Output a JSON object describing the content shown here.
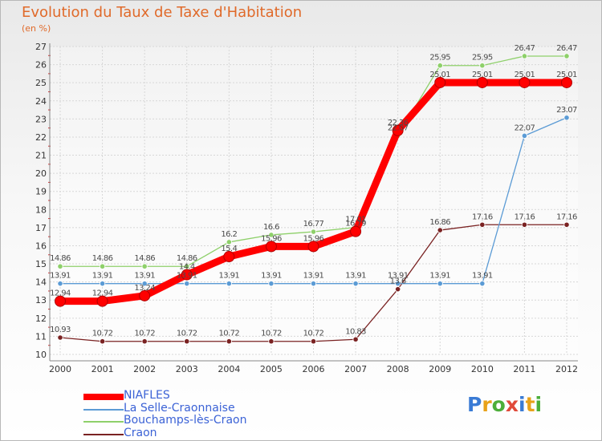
{
  "title": "Evolution du Taux de Taxe d'Habitation",
  "subtitle": "(en %)",
  "logo": {
    "text": "Proxiti",
    "colors": [
      "#3a7bd5",
      "#e8a21a",
      "#4cae3a",
      "#e04a3a",
      "#3a7bd5",
      "#e8a21a",
      "#4cae3a"
    ]
  },
  "chart_data": {
    "type": "line",
    "x": [
      2000,
      2001,
      2002,
      2003,
      2004,
      2005,
      2006,
      2007,
      2008,
      2009,
      2010,
      2011,
      2012
    ],
    "ylim": [
      10,
      27
    ],
    "yticks": [
      10,
      11,
      12,
      13,
      14,
      15,
      16,
      17,
      18,
      19,
      20,
      21,
      22,
      23,
      24,
      25,
      26,
      27
    ],
    "grid": true,
    "legend_position": "bottom-left",
    "series": [
      {
        "name": "NIAFLES",
        "color": "#ff0000",
        "values": [
          12.94,
          12.94,
          13.24,
          14.4,
          15.4,
          15.96,
          15.96,
          16.79,
          22.36,
          25.01,
          25.01,
          25.01,
          25.01
        ],
        "labels": [
          "12.94",
          "12.94",
          "13.24",
          "14.4",
          "15.4",
          "15.96",
          "15.96",
          "16.79",
          "22.36",
          "25.01",
          "25.01",
          "25.01",
          "25.01"
        ]
      },
      {
        "name": "La Selle-Craonnaise",
        "color": "#5b9bd5",
        "values": [
          13.91,
          13.91,
          13.91,
          13.91,
          13.91,
          13.91,
          13.91,
          13.91,
          13.91,
          13.91,
          13.91,
          22.07,
          23.07
        ],
        "labels": [
          "13.91",
          "13.91",
          "13.91",
          "13.91",
          "13.91",
          "13.91",
          "13.91",
          "13.91",
          "13.91",
          "13.91",
          "13.91",
          "22.07",
          "23.07"
        ]
      },
      {
        "name": "Bouchamps-lès-Craon",
        "color": "#8ed06a",
        "values": [
          14.86,
          14.86,
          14.86,
          14.86,
          16.2,
          16.6,
          16.77,
          17.01,
          22.07,
          25.95,
          25.95,
          26.47,
          26.47
        ],
        "labels": [
          "14.86",
          "14.86",
          "14.86",
          "14.86",
          "16.2",
          "16.6",
          "16.77",
          "17.01",
          "22.07",
          "25.95",
          "25.95",
          "26.47",
          "26.47"
        ]
      },
      {
        "name": "Craon",
        "color": "#7a2222",
        "values": [
          10.93,
          10.72,
          10.72,
          10.72,
          10.72,
          10.72,
          10.72,
          10.83,
          13.6,
          16.86,
          17.16,
          17.16,
          17.16
        ],
        "labels": [
          "10.93",
          "10.72",
          "10.72",
          "10.72",
          "10.72",
          "10.72",
          "10.72",
          "10.83",
          "13.6",
          "16.86",
          "17.16",
          "17.16",
          "17.16"
        ]
      }
    ]
  }
}
